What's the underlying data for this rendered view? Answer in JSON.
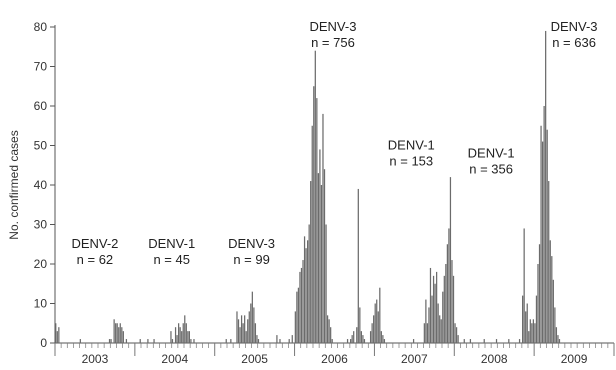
{
  "chart_data": {
    "type": "bar",
    "ylabel": "No. confirmed cases",
    "xlabel": "",
    "title": "",
    "ylim": [
      0,
      80
    ],
    "yticks": [
      0,
      10,
      20,
      30,
      40,
      50,
      60,
      70,
      80
    ],
    "grid": false,
    "bar_color": "#6b6b6b",
    "x_range_weeks": [
      0,
      364
    ],
    "year_labels": [
      {
        "label": "2003",
        "start_week": 0
      },
      {
        "label": "2004",
        "start_week": 52
      },
      {
        "label": "2005",
        "start_week": 104
      },
      {
        "label": "2006",
        "start_week": 156
      },
      {
        "label": "2007",
        "start_week": 208
      },
      {
        "label": "2008",
        "start_week": 260
      },
      {
        "label": "2009",
        "start_week": 312
      }
    ],
    "annotations": [
      {
        "serotype": "DENV-2",
        "count": "n = 62",
        "week": 26,
        "y": 24
      },
      {
        "serotype": "DENV-1",
        "count": "n = 45",
        "week": 76,
        "y": 24
      },
      {
        "serotype": "DENV-3",
        "count": "n = 99",
        "week": 128,
        "y": 24
      },
      {
        "serotype": "DENV-3",
        "count": "n = 756",
        "week": 181,
        "y": 79
      },
      {
        "serotype": "DENV-1",
        "count": "n = 153",
        "week": 232,
        "y": 49
      },
      {
        "serotype": "DENV-1",
        "count": "n = 356",
        "week": 284,
        "y": 47
      },
      {
        "serotype": "DENV-3",
        "count": "n = 636",
        "week": 338,
        "y": 79
      }
    ],
    "series": [
      {
        "values": [
          [
            0,
            5
          ],
          [
            1,
            3
          ],
          [
            2,
            4
          ],
          [
            16,
            1
          ],
          [
            35,
            1
          ],
          [
            36,
            1
          ],
          [
            38,
            6
          ],
          [
            39,
            5
          ],
          [
            40,
            5
          ],
          [
            41,
            4
          ],
          [
            42,
            5
          ],
          [
            43,
            4
          ],
          [
            44,
            3
          ],
          [
            46,
            1
          ],
          [
            55,
            1
          ],
          [
            60,
            1
          ],
          [
            64,
            1
          ],
          [
            75,
            3
          ],
          [
            76,
            1
          ],
          [
            78,
            4
          ],
          [
            79,
            2
          ],
          [
            80,
            5
          ],
          [
            81,
            4
          ],
          [
            82,
            3
          ],
          [
            83,
            5
          ],
          [
            84,
            7
          ],
          [
            85,
            5
          ],
          [
            86,
            3
          ],
          [
            87,
            3
          ],
          [
            88,
            1
          ],
          [
            90,
            1
          ],
          [
            111,
            1
          ],
          [
            114,
            1
          ],
          [
            118,
            8
          ],
          [
            119,
            6
          ],
          [
            120,
            4
          ],
          [
            121,
            7
          ],
          [
            122,
            5
          ],
          [
            123,
            7
          ],
          [
            124,
            3
          ],
          [
            125,
            6
          ],
          [
            126,
            8
          ],
          [
            127,
            10
          ],
          [
            128,
            13
          ],
          [
            129,
            9
          ],
          [
            130,
            5
          ],
          [
            131,
            2
          ],
          [
            132,
            1
          ],
          [
            144,
            2
          ],
          [
            146,
            1
          ],
          [
            152,
            1
          ],
          [
            154,
            2
          ],
          [
            156,
            8
          ],
          [
            157,
            13
          ],
          [
            158,
            14
          ],
          [
            159,
            18
          ],
          [
            160,
            19
          ],
          [
            161,
            21
          ],
          [
            162,
            27
          ],
          [
            163,
            24
          ],
          [
            164,
            26
          ],
          [
            165,
            30
          ],
          [
            166,
            41
          ],
          [
            167,
            55
          ],
          [
            168,
            65
          ],
          [
            169,
            74
          ],
          [
            170,
            62
          ],
          [
            171,
            43
          ],
          [
            172,
            49
          ],
          [
            173,
            40
          ],
          [
            174,
            58
          ],
          [
            175,
            44
          ],
          [
            176,
            30
          ],
          [
            177,
            7
          ],
          [
            178,
            6
          ],
          [
            179,
            4
          ],
          [
            180,
            1
          ],
          [
            190,
            1
          ],
          [
            192,
            1
          ],
          [
            193,
            2
          ],
          [
            194,
            3
          ],
          [
            196,
            4
          ],
          [
            197,
            39
          ],
          [
            198,
            9
          ],
          [
            199,
            3
          ],
          [
            200,
            2
          ],
          [
            201,
            1
          ],
          [
            205,
            3
          ],
          [
            206,
            5
          ],
          [
            207,
            7
          ],
          [
            208,
            10
          ],
          [
            209,
            11
          ],
          [
            210,
            8
          ],
          [
            211,
            14
          ],
          [
            212,
            3
          ],
          [
            213,
            2
          ],
          [
            214,
            1
          ],
          [
            233,
            1
          ],
          [
            240,
            5
          ],
          [
            241,
            11
          ],
          [
            242,
            5
          ],
          [
            243,
            9
          ],
          [
            244,
            19
          ],
          [
            245,
            12
          ],
          [
            246,
            17
          ],
          [
            247,
            15
          ],
          [
            248,
            18
          ],
          [
            249,
            10
          ],
          [
            250,
            7
          ],
          [
            251,
            6
          ],
          [
            252,
            13
          ],
          [
            253,
            17
          ],
          [
            254,
            20
          ],
          [
            255,
            25
          ],
          [
            256,
            29
          ],
          [
            257,
            42
          ],
          [
            258,
            21
          ],
          [
            259,
            17
          ],
          [
            260,
            5
          ],
          [
            261,
            4
          ],
          [
            262,
            2
          ],
          [
            266,
            1
          ],
          [
            270,
            1
          ],
          [
            279,
            1
          ],
          [
            287,
            1
          ],
          [
            295,
            1
          ],
          [
            302,
            1
          ],
          [
            304,
            12
          ],
          [
            305,
            29
          ],
          [
            306,
            8
          ],
          [
            307,
            10
          ],
          [
            308,
            3
          ],
          [
            309,
            6
          ],
          [
            310,
            5
          ],
          [
            311,
            6
          ],
          [
            312,
            5
          ],
          [
            313,
            12
          ],
          [
            314,
            20
          ],
          [
            315,
            25
          ],
          [
            316,
            55
          ],
          [
            317,
            51
          ],
          [
            318,
            60
          ],
          [
            319,
            79
          ],
          [
            320,
            54
          ],
          [
            321,
            41
          ],
          [
            322,
            26
          ],
          [
            323,
            22
          ],
          [
            324,
            16
          ],
          [
            325,
            9
          ],
          [
            326,
            4
          ],
          [
            327,
            2
          ],
          [
            328,
            1
          ]
        ]
      }
    ]
  }
}
